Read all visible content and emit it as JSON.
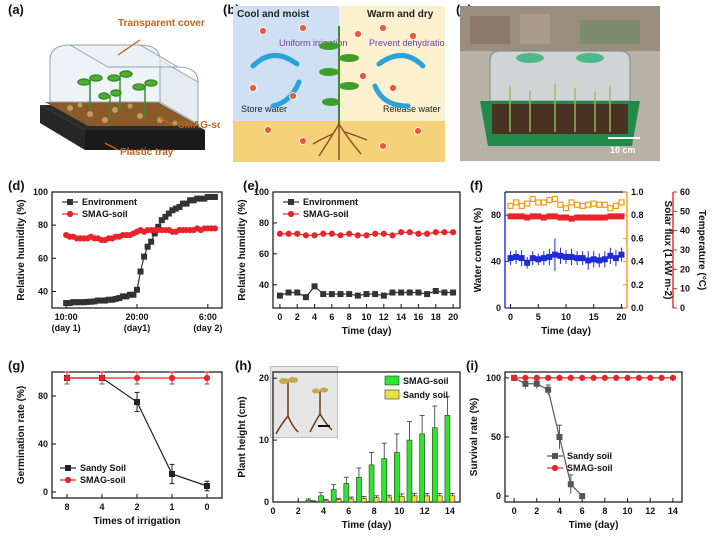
{
  "figure": {
    "panel_labels": [
      "(a)",
      "(b)",
      "(c)",
      "(d)",
      "(e)",
      "(f)",
      "(g)",
      "(h)",
      "(i)"
    ],
    "panel_a": {
      "cover_label": "Transparent cover",
      "soil_label": "SMAG-soil",
      "tray_label": "Plastic tray"
    },
    "panel_b": {
      "left_title": "Cool and moist",
      "right_title": "Warm and dry",
      "uniform": "Uniform irrigation",
      "prevent": "Prevent dehydration",
      "store": "Store water",
      "release": "Release water"
    },
    "panel_c": {
      "scale_label": "10 cm"
    },
    "colors": {
      "black_series": "#333333",
      "red_series": "#e8242b",
      "blue_series": "#1f2bd6",
      "orange_series": "#f39c12",
      "green_bar": "#2ee52e",
      "yellow_bar": "#e8e23a",
      "left_bg": "#cfe0f5",
      "right_bg": "#fbf1cf",
      "soil": "#f5d27a"
    }
  },
  "chart_data": [
    {
      "id": "d",
      "type": "line",
      "xlabel": "",
      "ylabel": "Relative humidity (%)",
      "ylim": [
        30,
        100
      ],
      "yticks": [
        40,
        60,
        80,
        100
      ],
      "xticks": [
        {
          "x": 0,
          "l1": "10:00",
          "l2": "(day 1)"
        },
        {
          "x": 10,
          "l1": "20:00",
          "l2": "(day1)"
        },
        {
          "x": 20,
          "l1": "6:00",
          "l2": "(day 2)"
        }
      ],
      "xlim": [
        -2,
        22
      ],
      "legend": "top-left",
      "series": [
        {
          "name": "Environment",
          "color": "#333333",
          "marker": "square",
          "x": [
            0,
            0.5,
            1,
            1.5,
            2,
            2.5,
            3,
            3.5,
            4,
            4.5,
            5,
            5.5,
            6,
            6.5,
            7,
            7.5,
            8,
            8.5,
            9,
            9.5,
            10,
            10.5,
            11,
            11.5,
            12,
            12.5,
            13,
            13.5,
            14,
            14.5,
            15,
            15.5,
            16,
            16.5,
            17,
            17.5,
            18,
            18.5,
            19,
            19.5,
            20,
            20.5,
            21
          ],
          "y": [
            33,
            33,
            33.5,
            33.5,
            33.5,
            33.5,
            33.7,
            33.8,
            34,
            34.5,
            34.5,
            34.5,
            35,
            35,
            35.5,
            36,
            37,
            37,
            38,
            38,
            41,
            52,
            61,
            67,
            70,
            75,
            79,
            83,
            85,
            87,
            89,
            90,
            91,
            93,
            93,
            95,
            95,
            96,
            96,
            96,
            97,
            97,
            97
          ]
        },
        {
          "name": "SMAG-soil",
          "color": "#e8242b",
          "marker": "circle",
          "x": [
            0,
            0.5,
            1,
            1.5,
            2,
            2.5,
            3,
            3.5,
            4,
            4.5,
            5,
            5.5,
            6,
            6.5,
            7,
            7.5,
            8,
            8.5,
            9,
            9.5,
            10,
            10.5,
            11,
            11.5,
            12,
            12.5,
            13,
            13.5,
            14,
            14.5,
            15,
            15.5,
            16,
            16.5,
            17,
            17.5,
            18,
            18.5,
            19,
            19.5,
            20,
            20.5,
            21
          ],
          "y": [
            74,
            73,
            73,
            72,
            72,
            72,
            72,
            73,
            72,
            72,
            71,
            71,
            72,
            72,
            73,
            73,
            74,
            74,
            74,
            75,
            76,
            77,
            76,
            77,
            77,
            77,
            77,
            77,
            77,
            77,
            76,
            76,
            77,
            77,
            77,
            77,
            77,
            78,
            77,
            78,
            78,
            78,
            78
          ]
        }
      ]
    },
    {
      "id": "e",
      "type": "line",
      "xlabel": "Time (day)",
      "ylabel": "Relative humidity (%)",
      "ylim": [
        25,
        100
      ],
      "yticks": [
        40,
        60,
        80,
        100
      ],
      "xlim": [
        -0.8,
        20.8
      ],
      "xticks": [
        0,
        2,
        4,
        6,
        8,
        10,
        12,
        14,
        16,
        18,
        20
      ],
      "legend": "top-left",
      "series": [
        {
          "name": "Environment",
          "color": "#333333",
          "marker": "square",
          "x": [
            0,
            1,
            2,
            3,
            4,
            5,
            6,
            7,
            8,
            9,
            10,
            11,
            12,
            13,
            14,
            15,
            16,
            17,
            18,
            19,
            20
          ],
          "y": [
            33,
            35,
            35,
            32,
            39,
            34,
            34,
            34,
            34,
            33,
            34,
            34,
            33,
            35,
            35,
            35,
            35,
            34,
            36,
            35,
            35
          ]
        },
        {
          "name": "SMAG-soil",
          "color": "#e8242b",
          "marker": "circle",
          "x": [
            0,
            1,
            2,
            3,
            4,
            5,
            6,
            7,
            8,
            9,
            10,
            11,
            12,
            13,
            14,
            15,
            16,
            17,
            18,
            19,
            20
          ],
          "y": [
            73,
            73,
            73,
            72,
            72,
            73,
            73,
            72,
            73,
            72,
            72,
            73,
            73,
            72,
            74,
            74,
            73,
            73,
            74,
            74,
            74
          ]
        }
      ]
    },
    {
      "id": "f",
      "type": "line",
      "xlabel": "Time (day)",
      "ylabel": "Water content (%)",
      "ylabel_right": "Solar flux (1 kW m-2)",
      "ylabel_right2": "Temperature (°C)",
      "ylim": [
        0,
        100
      ],
      "yticks": [
        0,
        40,
        80
      ],
      "ylim_right": [
        0,
        1.0
      ],
      "yticks_right": [
        0.0,
        0.2,
        0.4,
        0.6,
        0.8,
        1.0
      ],
      "ylim_right2": [
        0,
        60
      ],
      "yticks_right2": [
        0,
        10,
        20,
        30,
        40,
        50,
        60
      ],
      "xlim": [
        -1,
        21
      ],
      "xticks": [
        0,
        5,
        10,
        15,
        20
      ],
      "series": [
        {
          "name": "Water content",
          "color": "#1f2bd6",
          "marker": "square",
          "axis": "left",
          "x": [
            0,
            1,
            2,
            3,
            4,
            5,
            6,
            7,
            8,
            9,
            10,
            11,
            12,
            13,
            14,
            15,
            16,
            17,
            18,
            19,
            20
          ],
          "y": [
            43,
            44,
            43,
            39,
            43,
            42,
            43,
            44,
            46,
            45,
            44,
            44,
            43,
            43,
            41,
            42,
            41,
            42,
            45,
            43,
            46
          ],
          "err": [
            6,
            6,
            7,
            5,
            6,
            5,
            6,
            7,
            14,
            7,
            6,
            7,
            6,
            6,
            8,
            7,
            6,
            7,
            7,
            7,
            6
          ]
        },
        {
          "name": "Temperature",
          "color": "#e8242b",
          "marker": "square",
          "axis": "left",
          "x": [
            0,
            1,
            2,
            3,
            4,
            5,
            6,
            7,
            8,
            9,
            10,
            11,
            12,
            13,
            14,
            15,
            16,
            17,
            18,
            19,
            20
          ],
          "y": [
            79,
            79,
            79,
            78,
            79,
            79,
            78,
            79,
            79,
            78,
            78,
            77,
            78,
            78,
            78,
            78,
            78,
            78,
            79,
            79,
            79
          ]
        },
        {
          "name": "Solar flux",
          "color": "#f39c12",
          "marker": "square-open",
          "axis": "right",
          "x": [
            0,
            1,
            2,
            3,
            4,
            5,
            6,
            7,
            8,
            9,
            10,
            11,
            12,
            13,
            14,
            15,
            16,
            17,
            18,
            19,
            20
          ],
          "y": [
            0.88,
            0.91,
            0.88,
            0.9,
            0.94,
            0.91,
            0.91,
            0.93,
            0.94,
            0.89,
            0.86,
            0.91,
            0.89,
            0.88,
            0.89,
            0.9,
            0.89,
            0.89,
            0.86,
            0.88,
            0.91
          ]
        }
      ]
    },
    {
      "id": "g",
      "type": "line",
      "xlabel": "Times of irrigation",
      "ylabel": "Germination rate (%)",
      "ylim": [
        -5,
        100
      ],
      "yticks": [
        0,
        40,
        80
      ],
      "categories": [
        "8",
        "4",
        "2",
        "1",
        "0"
      ],
      "legend": "bottom-left",
      "series": [
        {
          "name": "Sandy Soil",
          "color": "#222222",
          "marker": "square",
          "values": [
            95,
            95,
            75,
            15,
            5
          ],
          "err": [
            5,
            5,
            8,
            8,
            4
          ]
        },
        {
          "name": "SMAG-soil",
          "color": "#e8242b",
          "marker": "circle",
          "values": [
            95,
            95,
            95,
            95,
            95
          ],
          "err": [
            5,
            5,
            5,
            5,
            5
          ]
        }
      ]
    },
    {
      "id": "h",
      "type": "bar",
      "xlabel": "Time (day)",
      "ylabel": "Plant height (cm)",
      "ylim": [
        0,
        21
      ],
      "yticks": [
        0,
        10,
        20
      ],
      "xlim": [
        0,
        14.8
      ],
      "xticks": [
        0,
        2,
        4,
        6,
        8,
        10,
        12,
        14
      ],
      "legend": "top-right",
      "series": [
        {
          "name": "SMAG-soil",
          "color": "#2ee52e",
          "x": [
            3,
            4,
            5,
            6,
            7,
            8,
            9,
            10,
            11,
            12,
            13,
            14
          ],
          "values": [
            0.3,
            1,
            2,
            3,
            4,
            6,
            7,
            8,
            10,
            11,
            12,
            14
          ],
          "err": [
            0.2,
            0.5,
            0.8,
            1,
            1.5,
            2,
            2.5,
            3,
            3,
            3,
            3.5,
            3
          ]
        },
        {
          "name": "Sandy soil",
          "color": "#e8e23a",
          "x": [
            3,
            4,
            5,
            6,
            7,
            8,
            9,
            10,
            11,
            12,
            13,
            14
          ],
          "values": [
            0.1,
            0.2,
            0.4,
            0.5,
            0.6,
            0.7,
            0.8,
            0.9,
            1,
            1,
            1,
            1
          ],
          "err": [
            0.1,
            0.2,
            0.2,
            0.3,
            0.3,
            0.3,
            0.3,
            0.4,
            0.4,
            0.4,
            0.4,
            0.4
          ]
        }
      ]
    },
    {
      "id": "i",
      "type": "line",
      "xlabel": "Time (day)",
      "ylabel": "Survival rate (%)",
      "ylim": [
        -5,
        105
      ],
      "yticks": [
        0,
        50,
        100
      ],
      "xlim": [
        -0.8,
        14.8
      ],
      "xticks": [
        0,
        2,
        4,
        6,
        8,
        10,
        12,
        14
      ],
      "legend": "center",
      "series": [
        {
          "name": "Sandy soil",
          "color": "#555555",
          "marker": "square",
          "x": [
            0,
            1,
            2,
            3,
            4,
            5,
            6
          ],
          "y": [
            100,
            95,
            95,
            90,
            50,
            10,
            0
          ],
          "err": [
            0,
            4,
            4,
            4,
            10,
            8,
            0
          ]
        },
        {
          "name": "SMAG-soil",
          "color": "#e8242b",
          "marker": "circle",
          "x": [
            0,
            1,
            2,
            3,
            4,
            5,
            6,
            7,
            8,
            9,
            10,
            11,
            12,
            13,
            14
          ],
          "y": [
            100,
            100,
            100,
            100,
            100,
            100,
            100,
            100,
            100,
            100,
            100,
            100,
            100,
            100,
            100
          ]
        }
      ]
    }
  ]
}
